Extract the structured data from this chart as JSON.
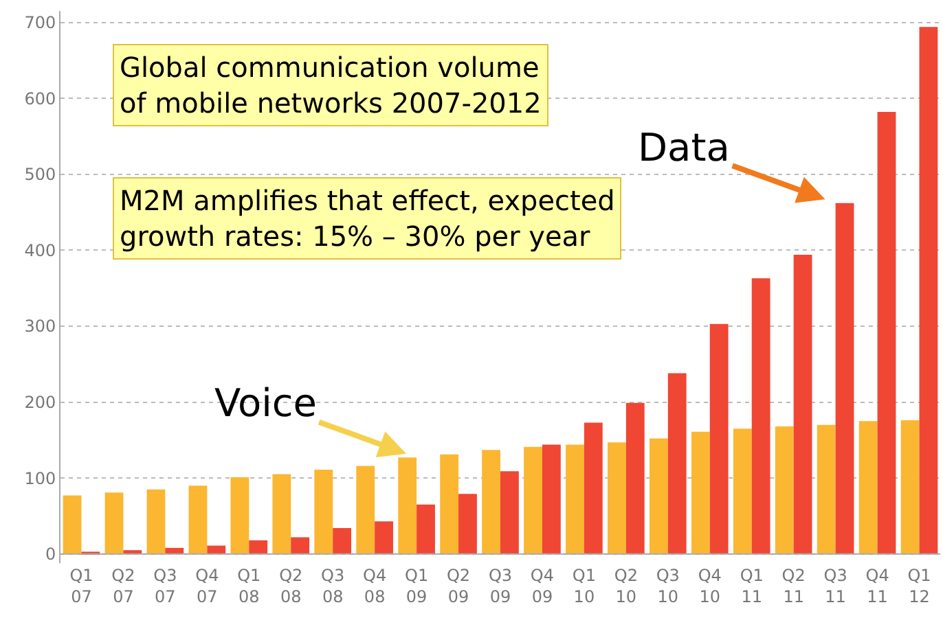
{
  "chart_data": {
    "type": "bar",
    "categories": [
      "Q1 07",
      "Q2 07",
      "Q3 07",
      "Q4 07",
      "Q1 08",
      "Q2 08",
      "Q3 08",
      "Q4 08",
      "Q1 09",
      "Q2 09",
      "Q3 09",
      "Q4 09",
      "Q1 10",
      "Q2 10",
      "Q3 10",
      "Q4 10",
      "Q1 11",
      "Q2 11",
      "Q3 11",
      "Q4 11",
      "Q1 12"
    ],
    "series": [
      {
        "color": "#fbb731",
        "values": [
          77,
          81,
          85,
          90,
          101,
          105,
          111,
          116,
          127,
          131,
          137,
          141,
          144,
          147,
          152,
          161,
          165,
          168,
          170,
          175,
          176
        ]
      },
      {
        "color": "#f04634",
        "values": [
          3,
          5,
          8,
          11,
          18,
          22,
          34,
          43,
          65,
          79,
          109,
          144,
          173,
          199,
          238,
          303,
          363,
          394,
          462,
          582,
          694
        ]
      }
    ],
    "ylim": [
      -12,
      715
    ],
    "yticks": [
      0,
      100,
      200,
      300,
      400,
      500,
      600,
      700
    ],
    "grid": "y",
    "annotations": [
      "Global communication volume\nof mobile networks 2007-2012",
      "M2M amplifies that effect, expected\ngrowth rates: 15% – 30% per year",
      {
        "text": "Voice",
        "x": "Q1 09",
        "y": 127
      },
      {
        "text": "Data",
        "x": "Q3 11",
        "y": 462
      }
    ]
  }
}
